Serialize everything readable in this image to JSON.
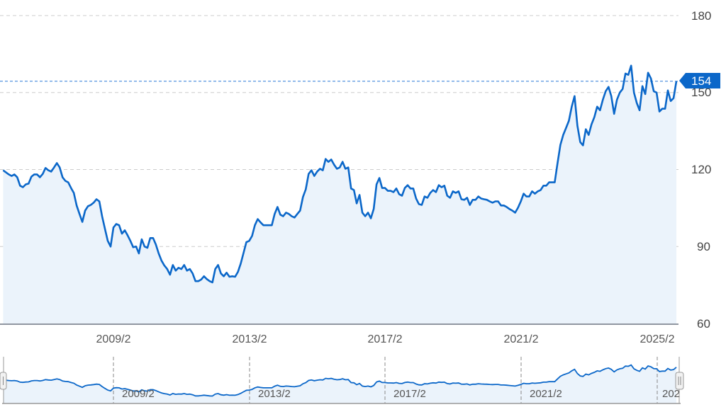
{
  "chart_data": {
    "type": "area",
    "title": "",
    "xlabel": "",
    "ylabel": "",
    "ylim": [
      60,
      180
    ],
    "y_ticks": [
      "60",
      "90",
      "120",
      "150",
      "180"
    ],
    "x_ticks": [
      "2009/2",
      "2013/2",
      "2017/2",
      "2021/2",
      "2025/2"
    ],
    "navigator_ticks": [
      "2009/2",
      "2013/2",
      "2017/2",
      "2021/2",
      "202"
    ],
    "grid": "horizontal dashed",
    "current_value_label": "154",
    "current_value": 154.4,
    "colors": {
      "line": "#0b67c9",
      "fill": "#ebf3fb",
      "badge": "#0b67c9",
      "grid": "#cccccc"
    },
    "monthly_values": {
      "2005": [
        null,
        null,
        null,
        null,
        null,
        null,
        null,
        null,
        null,
        null,
        119.7,
        118.9
      ],
      "2006": [
        118.1,
        117.5,
        118.1,
        117.0,
        113.7,
        113.1,
        114.2,
        114.5,
        117.2,
        118.1,
        118.1,
        117.0
      ],
      "2007": [
        118.3,
        120.6,
        119.7,
        119.2,
        120.8,
        122.5,
        120.8,
        117.0,
        115.6,
        115.0,
        112.8,
        110.9
      ],
      "2008": [
        106.0,
        102.7,
        99.6,
        104.0,
        105.7,
        106.2,
        107.1,
        108.4,
        107.6,
        101.8,
        96.9,
        92.2
      ],
      "2009": [
        90.0,
        97.4,
        98.8,
        98.3,
        95.0,
        96.3,
        94.4,
        92.2,
        89.7,
        90.0,
        87.3,
        92.8
      ],
      "2010": [
        90.0,
        89.5,
        93.3,
        93.3,
        90.8,
        87.3,
        84.5,
        82.6,
        81.2,
        79.0,
        82.8,
        80.6
      ],
      "2011": [
        81.7,
        81.2,
        82.8,
        80.6,
        81.2,
        79.5,
        76.5,
        76.5,
        77.1,
        78.4,
        77.3,
        76.5
      ],
      "2012": [
        76.0,
        81.2,
        82.8,
        79.5,
        78.4,
        79.8,
        78.2,
        78.4,
        78.2,
        80.1,
        83.4,
        87.5
      ],
      "2013": [
        91.7,
        92.2,
        94.1,
        98.3,
        100.7,
        99.4,
        98.3,
        98.3,
        98.3,
        98.3,
        102.7,
        105.4
      ],
      "2014": [
        102.4,
        101.8,
        103.2,
        102.7,
        101.8,
        101.3,
        102.7,
        104.0,
        109.3,
        112.3,
        118.3,
        119.7
      ],
      "2015": [
        117.5,
        119.2,
        120.3,
        119.7,
        124.1,
        123.0,
        123.9,
        121.9,
        120.3,
        120.8,
        123.0,
        120.3
      ],
      "2016": [
        120.8,
        112.6,
        112.0,
        106.8,
        110.1,
        103.2,
        101.8,
        103.2,
        101.0,
        104.6,
        114.2,
        116.7
      ],
      "2017": [
        112.8,
        112.8,
        111.7,
        111.7,
        111.2,
        112.6,
        110.4,
        109.8,
        112.8,
        113.9,
        112.6,
        112.6
      ],
      "2018": [
        108.7,
        106.5,
        106.2,
        109.5,
        109.0,
        110.9,
        112.0,
        111.2,
        113.9,
        113.1,
        113.7,
        109.8
      ],
      "2019": [
        109.0,
        111.5,
        110.9,
        111.5,
        108.4,
        108.2,
        109.0,
        106.2,
        108.2,
        108.2,
        109.5,
        108.7
      ],
      "2020": [
        108.4,
        108.2,
        107.6,
        107.1,
        107.6,
        107.6,
        106.0,
        106.0,
        105.4,
        104.6,
        104.0,
        103.2
      ],
      "2021": [
        105.1,
        107.6,
        110.6,
        109.5,
        109.5,
        111.5,
        110.6,
        111.5,
        112.0,
        113.7,
        113.7,
        115.0
      ],
      "2022": [
        115.0,
        115.0,
        122.5,
        129.6,
        133.5,
        136.2,
        139.0,
        144.5,
        148.6,
        137.1,
        130.7,
        129.4
      ],
      "2023": [
        135.7,
        133.5,
        137.6,
        140.4,
        144.5,
        143.1,
        147.2,
        150.5,
        152.2,
        148.6,
        141.7,
        147.2
      ],
      "2024": [
        150.0,
        151.4,
        157.4,
        156.9,
        160.5,
        150.0,
        145.9,
        143.1,
        152.5,
        149.4,
        157.7,
        155.5
      ],
      "2025": [
        150.5,
        150.0,
        142.6,
        143.7,
        143.7,
        150.8,
        146.7,
        147.8,
        154.4,
        null,
        null,
        null
      ]
    }
  }
}
